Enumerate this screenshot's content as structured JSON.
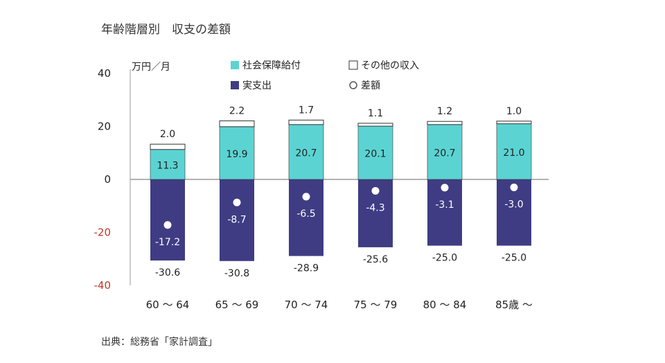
{
  "title": "年齢階層別　収支の差額",
  "unit_label": "万円／月",
  "source": "出典：総務省「家計調査」",
  "legend": [
    {
      "key": "social",
      "label": "社会保障給付",
      "marker": "square"
    },
    {
      "key": "other",
      "label": "その他の収入",
      "marker": "square"
    },
    {
      "key": "expense",
      "label": "実支出",
      "marker": "square"
    },
    {
      "key": "diff",
      "label": "差額",
      "marker": "circle"
    }
  ],
  "colors": {
    "social": "#5cd3d3",
    "other": "#ffffff",
    "expense": "#3f3c83",
    "diff": "#ffffff",
    "axis": "#999999",
    "negative_tick": "#c0392b",
    "positive_tick": "#222222"
  },
  "chart_data": {
    "type": "bar",
    "stacked": true,
    "ylim": [
      -40,
      40
    ],
    "yticks": [
      40,
      20,
      0,
      -20,
      -40
    ],
    "ylabel": "万円／月",
    "categories": [
      "60 〜 64",
      "65 〜 69",
      "70 〜 74",
      "75 〜 79",
      "80 〜 84",
      "85歳 〜"
    ],
    "series": [
      {
        "name": "社会保障給付",
        "key": "social",
        "values": [
          11.3,
          19.9,
          20.7,
          20.1,
          20.7,
          21.0
        ],
        "labels": [
          "11.3",
          "19.9",
          "20.7",
          "20.1",
          "20.7",
          "21.0"
        ]
      },
      {
        "name": "その他の収入",
        "key": "other",
        "values": [
          2.0,
          2.2,
          1.7,
          1.1,
          1.2,
          1.0
        ],
        "labels": [
          "2.0",
          "2.2",
          "1.7",
          "1.1",
          "1.2",
          "1.0"
        ]
      },
      {
        "name": "実支出",
        "key": "expense",
        "values": [
          -30.6,
          -30.8,
          -28.9,
          -25.6,
          -25.0,
          -25.0
        ],
        "labels": [
          "-30.6",
          "-30.8",
          "-28.9",
          "-25.6",
          "-25.0",
          "-25.0"
        ]
      },
      {
        "name": "差額",
        "key": "diff",
        "type": "point",
        "values": [
          -17.2,
          -8.7,
          -6.5,
          -4.3,
          -3.1,
          -3.0
        ],
        "labels": [
          "-17.2",
          "-8.7",
          "-6.5",
          "-4.3",
          "-3.1",
          "-3.0"
        ]
      }
    ]
  }
}
